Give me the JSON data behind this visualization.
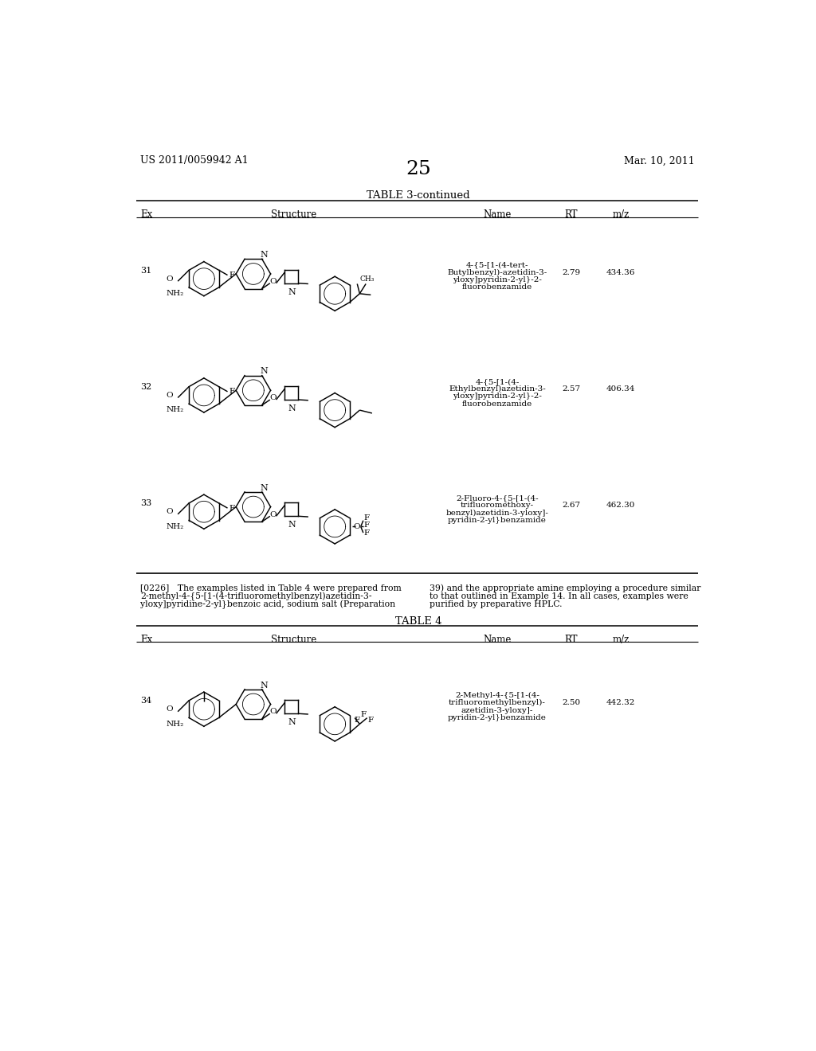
{
  "page_number": "25",
  "patent_number": "US 2011/0059942 A1",
  "patent_date": "Mar. 10, 2011",
  "table3_title": "TABLE 3-continued",
  "table4_title": "TABLE 4",
  "table3_rows": [
    {
      "ex": "31",
      "name_lines": [
        "4-{5-[1-(4-tert-",
        "Butylbenzyl)-azetidin-3-",
        "yloxy]pyridin-2-yl}-2-",
        "fluorobenzamide"
      ],
      "rt": "2.79",
      "mz": "434.36"
    },
    {
      "ex": "32",
      "name_lines": [
        "4-{5-[1-(4-",
        "Ethylbenzyl)azetidin-3-",
        "yloxy]pyridin-2-yl}-2-",
        "fluorobenzamide"
      ],
      "rt": "2.57",
      "mz": "406.34"
    },
    {
      "ex": "33",
      "name_lines": [
        "2-Fluoro-4-{5-[1-(4-",
        "trifluoromethoxy-",
        "benzyl)azetidin-3-yloxy]-",
        "pyridin-2-yl}benzamide"
      ],
      "rt": "2.67",
      "mz": "462.30"
    }
  ],
  "para_left_lines": [
    "[0226]   The examples listed in Table 4 were prepared from",
    "2-methyl-4-{5-[1-(4-trifluoromethylbenzyl)azetidin-3-",
    "yloxy]pyridine-2-yl}benzoic acid, sodium salt (Preparation"
  ],
  "para_right_lines": [
    "39) and the appropriate amine employing a procedure similar",
    "to that outlined in Example 14. In all cases, examples were",
    "purified by preparative HPLC."
  ],
  "table4_rows": [
    {
      "ex": "34",
      "name_lines": [
        "2-Methyl-4-{5-[1-(4-",
        "trifluoromethylbenzyl)-",
        "azetidin-3-yloxy]-",
        "pyridin-2-yl}benzamide"
      ],
      "rt": "2.50",
      "mz": "442.32"
    }
  ]
}
